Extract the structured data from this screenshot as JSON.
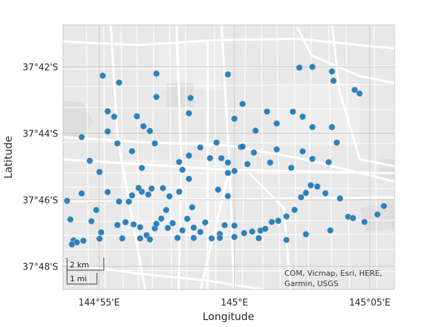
{
  "map": {
    "xlabel": "Longitude",
    "ylabel": "Latitude",
    "x_ticks": [
      {
        "label": "144°55'E",
        "lon": 144.9167
      },
      {
        "label": "145°E",
        "lon": 145.0
      },
      {
        "label": "145°05'E",
        "lon": 145.0833
      }
    ],
    "y_ticks": [
      {
        "label": "37°42'S",
        "lat": -37.7
      },
      {
        "label": "37°44'S",
        "lat": -37.7333
      },
      {
        "label": "37°46'S",
        "lat": -37.7667
      },
      {
        "label": "37°48'S",
        "lat": -37.8
      }
    ],
    "lon_range": [
      144.8945,
      145.0985
    ],
    "lat_range": [
      -37.8117,
      -37.679
    ],
    "scalebar": {
      "km_label": "2 km",
      "mi_label": "1 mi"
    },
    "attribution": [
      "COM, Vicmap, Esri, HERE,",
      "Garmin, USGS"
    ],
    "grid": true,
    "colors": {
      "marker": "#1f77b4",
      "basemap": "#e8e8e8",
      "road": "#ffffff",
      "grid": "#c8c8c8"
    }
  },
  "chart_data": {
    "type": "scatter",
    "xlabel": "Longitude",
    "ylabel": "Latitude",
    "xlim": [
      144.8945,
      145.0985
    ],
    "ylim": [
      -37.8117,
      -37.679
    ],
    "grid": true,
    "points": [
      [
        144.919,
        -37.7044
      ],
      [
        144.929,
        -37.7079
      ],
      [
        144.952,
        -37.7034
      ],
      [
        144.996,
        -37.7038
      ],
      [
        145.04,
        -37.7004
      ],
      [
        145.048,
        -37.7
      ],
      [
        145.06,
        -37.7023
      ],
      [
        145.061,
        -37.707
      ],
      [
        145.074,
        -37.7116
      ],
      [
        145.077,
        -37.7134
      ],
      [
        144.952,
        -37.7151
      ],
      [
        144.973,
        -37.7156
      ],
      [
        144.922,
        -37.7223
      ],
      [
        144.926,
        -37.725
      ],
      [
        144.94,
        -37.7248
      ],
      [
        144.972,
        -37.7233
      ],
      [
        144.906,
        -37.7352
      ],
      [
        144.911,
        -37.7471
      ],
      [
        144.917,
        -37.7527
      ],
      [
        144.922,
        -37.7324
      ],
      [
        144.928,
        -37.7384
      ],
      [
        144.937,
        -37.7423
      ],
      [
        144.943,
        -37.7507
      ],
      [
        144.951,
        -37.7384
      ],
      [
        144.944,
        -37.7298
      ],
      [
        144.948,
        -37.7322
      ],
      [
        144.966,
        -37.7477
      ],
      [
        144.968,
        -37.7516
      ],
      [
        144.972,
        -37.7562
      ],
      [
        144.972,
        -37.7445
      ],
      [
        144.979,
        -37.7404
      ],
      [
        144.989,
        -37.738
      ],
      [
        144.996,
        -37.748
      ],
      [
        144.992,
        -37.7458
      ],
      [
        144.985,
        -37.7458
      ],
      [
        145.004,
        -37.7402
      ],
      [
        145.005,
        -37.7186
      ],
      [
        145.0,
        -37.726
      ],
      [
        145.013,
        -37.732
      ],
      [
        145.02,
        -37.7224
      ],
      [
        145.026,
        -37.7284
      ],
      [
        145.036,
        -37.7225
      ],
      [
        145.042,
        -37.725
      ],
      [
        145.048,
        -37.7302
      ],
      [
        145.06,
        -37.7302
      ],
      [
        145.063,
        -37.738
      ],
      [
        145.058,
        -37.7478
      ],
      [
        145.048,
        -37.7462
      ],
      [
        145.042,
        -37.7424
      ],
      [
        145.035,
        -37.7506
      ],
      [
        145.026,
        -37.7414
      ],
      [
        145.022,
        -37.748
      ],
      [
        145.012,
        -37.743
      ],
      [
        145.005,
        -37.74
      ],
      [
        145.008,
        -37.7488
      ],
      [
        145.0,
        -37.7522
      ],
      [
        144.996,
        -37.7532
      ],
      [
        144.996,
        -37.7648
      ],
      [
        144.99,
        -37.7616
      ],
      [
        144.974,
        -37.7704
      ],
      [
        144.966,
        -37.7626
      ],
      [
        144.96,
        -37.7649
      ],
      [
        144.956,
        -37.7608
      ],
      [
        144.949,
        -37.761
      ],
      [
        144.947,
        -37.764
      ],
      [
        144.943,
        -37.7626
      ],
      [
        144.941,
        -37.7607
      ],
      [
        144.937,
        -37.7645
      ],
      [
        144.935,
        -37.7676
      ],
      [
        144.929,
        -37.7675
      ],
      [
        144.922,
        -37.7628
      ],
      [
        144.915,
        -37.7718
      ],
      [
        144.906,
        -37.7635
      ],
      [
        144.897,
        -37.7672
      ],
      [
        144.899,
        -37.7765
      ],
      [
        144.901,
        -37.787
      ],
      [
        144.912,
        -37.7774
      ],
      [
        144.918,
        -37.783
      ],
      [
        144.928,
        -37.7793
      ],
      [
        144.933,
        -37.7779
      ],
      [
        144.938,
        -37.779
      ],
      [
        144.942,
        -37.7804
      ],
      [
        144.946,
        -37.7844
      ],
      [
        144.948,
        -37.7865
      ],
      [
        144.951,
        -37.781
      ],
      [
        144.952,
        -37.7787
      ],
      [
        144.958,
        -37.7718
      ],
      [
        144.955,
        -37.7761
      ],
      [
        144.959,
        -37.7808
      ],
      [
        144.962,
        -37.7784
      ],
      [
        144.968,
        -37.782
      ],
      [
        144.971,
        -37.7762
      ],
      [
        144.975,
        -37.7806
      ],
      [
        144.979,
        -37.7828
      ],
      [
        144.982,
        -37.778
      ],
      [
        144.991,
        -37.7838
      ],
      [
        144.994,
        -37.7794
      ],
      [
        145.0,
        -37.7796
      ],
      [
        145.006,
        -37.7834
      ],
      [
        145.011,
        -37.7826
      ],
      [
        145.016,
        -37.7821
      ],
      [
        145.019,
        -37.7812
      ],
      [
        145.023,
        -37.7778
      ],
      [
        145.027,
        -37.7772
      ],
      [
        145.032,
        -37.775
      ],
      [
        145.037,
        -37.7717
      ],
      [
        145.041,
        -37.7654
      ],
      [
        145.044,
        -37.7632
      ],
      [
        145.047,
        -37.7594
      ],
      [
        145.051,
        -37.76
      ],
      [
        145.056,
        -37.7634
      ],
      [
        145.065,
        -37.766
      ],
      [
        145.07,
        -37.7752
      ],
      [
        145.073,
        -37.7758
      ],
      [
        145.08,
        -37.7778
      ],
      [
        145.088,
        -37.774
      ],
      [
        145.092,
        -37.7698
      ],
      [
        145.059,
        -37.782
      ],
      [
        145.044,
        -37.7839
      ],
      [
        145.032,
        -37.7868
      ],
      [
        145.015,
        -37.7859
      ],
      [
        145.0,
        -37.7853
      ],
      [
        144.991,
        -37.7858
      ],
      [
        144.986,
        -37.786
      ],
      [
        144.975,
        -37.7858
      ],
      [
        144.965,
        -37.7858
      ],
      [
        144.942,
        -37.786
      ],
      [
        144.931,
        -37.786
      ],
      [
        144.917,
        -37.7862
      ],
      [
        144.907,
        -37.7872
      ],
      [
        144.903,
        -37.788
      ],
      [
        144.9,
        -37.789
      ]
    ]
  }
}
